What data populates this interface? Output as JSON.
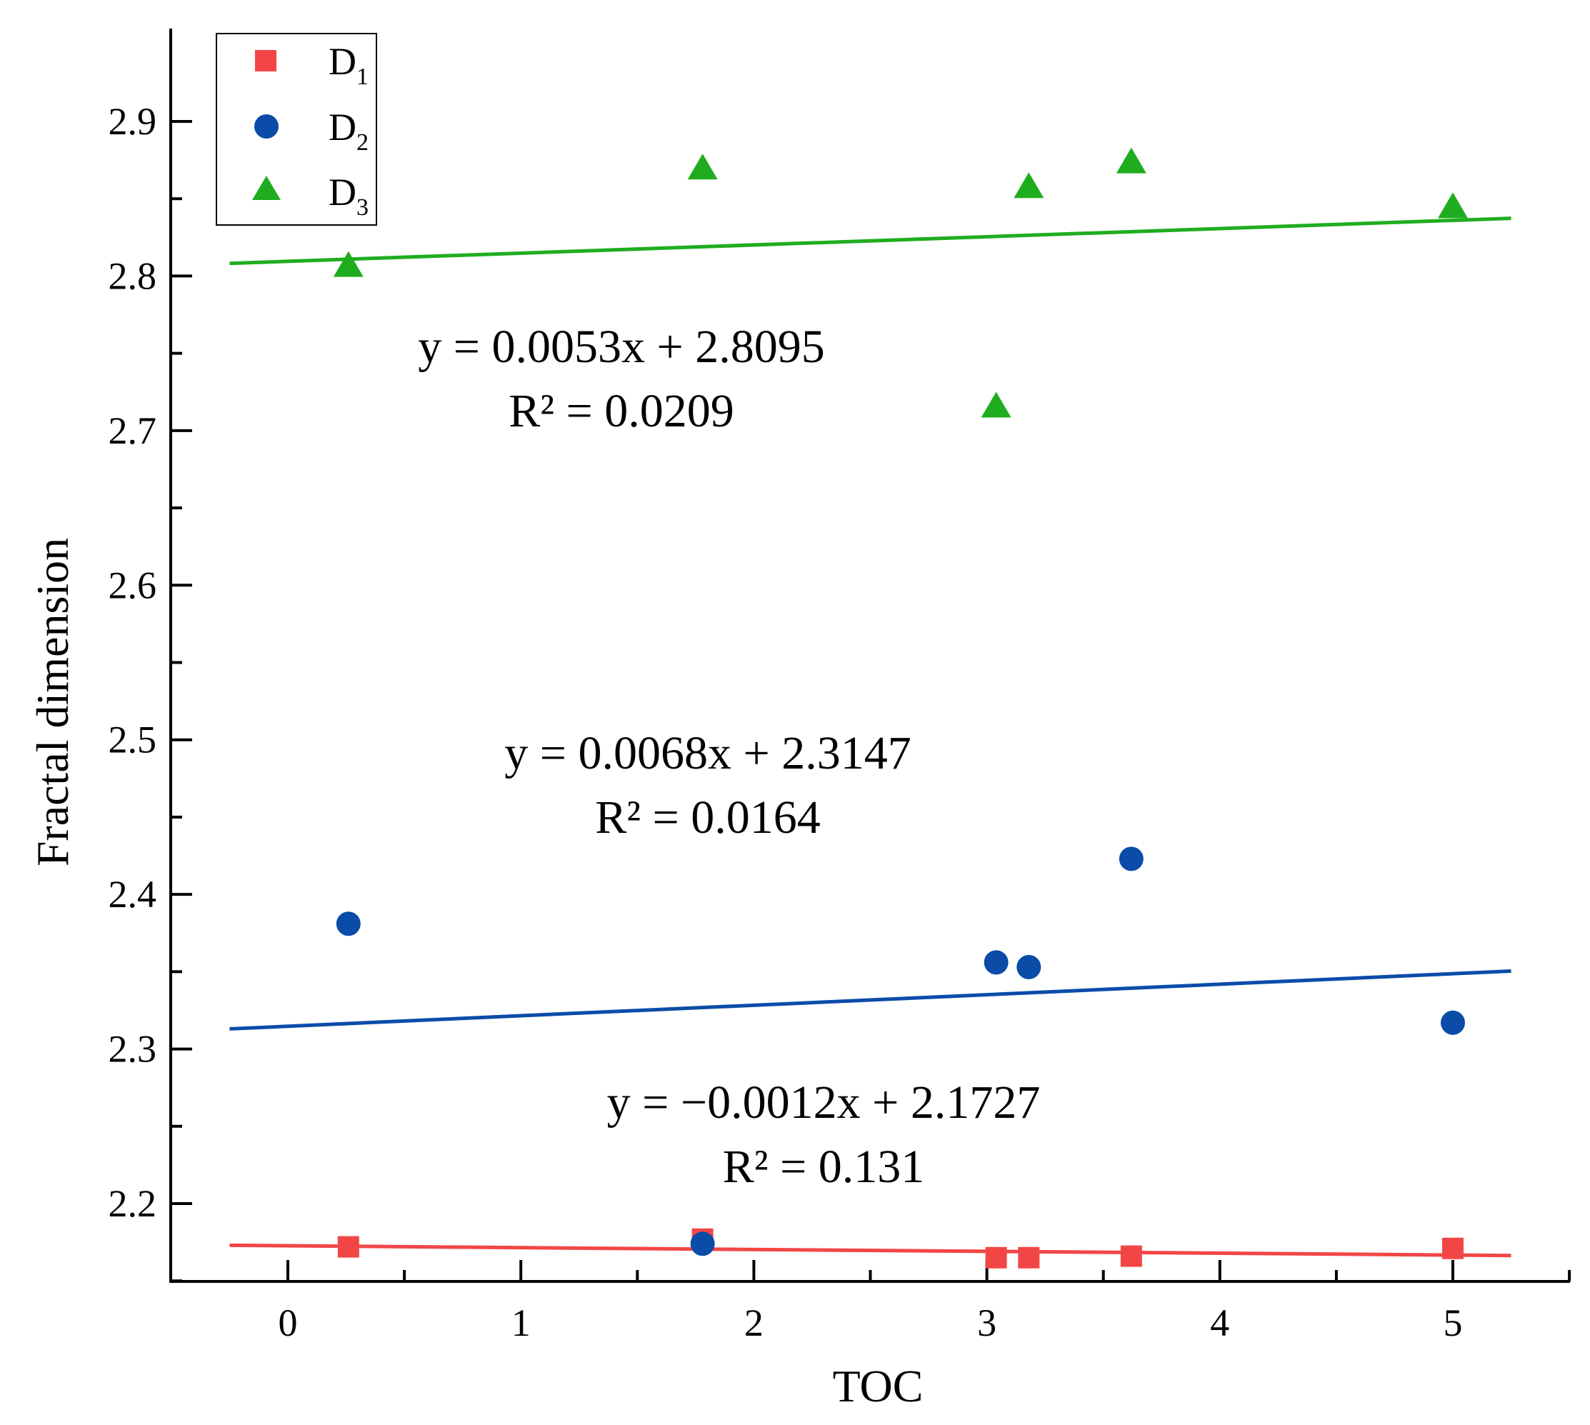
{
  "chart_data": {
    "type": "scatter",
    "title": "",
    "xlabel": "TOC",
    "ylabel": "Fractal dimension",
    "xlim": [
      -0.5,
      5.5
    ],
    "ylim": [
      2.15,
      2.95
    ],
    "xticks": [
      0,
      1,
      2,
      3,
      4,
      5
    ],
    "xtick_labels": [
      "0",
      "1",
      "2",
      "3",
      "4",
      "5"
    ],
    "yticks": [
      2.2,
      2.3,
      2.4,
      2.5,
      2.6,
      2.7,
      2.8,
      2.9
    ],
    "ytick_labels": [
      "2.2",
      "2.3",
      "2.4",
      "2.5",
      "2.6",
      "2.7",
      "2.8",
      "2.9"
    ],
    "grid": false,
    "legend_position": "top-left",
    "series": [
      {
        "name": "D1",
        "label_main": "D",
        "label_sub": "1",
        "marker": "square",
        "color": "#f24646",
        "x": [
          0.26,
          1.78,
          3.04,
          3.18,
          3.62,
          5.0
        ],
        "y": [
          2.172,
          2.177,
          2.165,
          2.165,
          2.166,
          2.171
        ],
        "fit": {
          "slope": -0.0012,
          "intercept": 2.1727,
          "x_range": [
            -0.25,
            5.25
          ]
        },
        "equation": "y = −0.0012x + 2.1727",
        "r2": "R² = 0.131"
      },
      {
        "name": "D2",
        "label_main": "D",
        "label_sub": "2",
        "marker": "circle",
        "color": "#0a4ca8",
        "x": [
          0.26,
          1.78,
          3.04,
          3.18,
          3.62,
          5.0
        ],
        "y": [
          2.381,
          2.174,
          2.356,
          2.353,
          2.423,
          2.317
        ],
        "fit": {
          "slope": 0.0068,
          "intercept": 2.3147,
          "x_range": [
            -0.25,
            5.25
          ]
        },
        "equation": "y = 0.0068x + 2.3147",
        "r2": "R² = 0.0164"
      },
      {
        "name": "D3",
        "label_main": "D",
        "label_sub": "3",
        "marker": "triangle",
        "color": "#1fad1f",
        "x": [
          0.26,
          1.78,
          3.04,
          3.18,
          3.62,
          5.0
        ],
        "y": [
          2.805,
          2.868,
          2.714,
          2.856,
          2.872,
          2.843
        ],
        "fit": {
          "slope": 0.0053,
          "intercept": 2.8095,
          "x_range": [
            -0.25,
            5.25
          ]
        },
        "equation": "y = 0.0053x + 2.8095",
        "r2": "R² = 0.0209"
      }
    ]
  }
}
